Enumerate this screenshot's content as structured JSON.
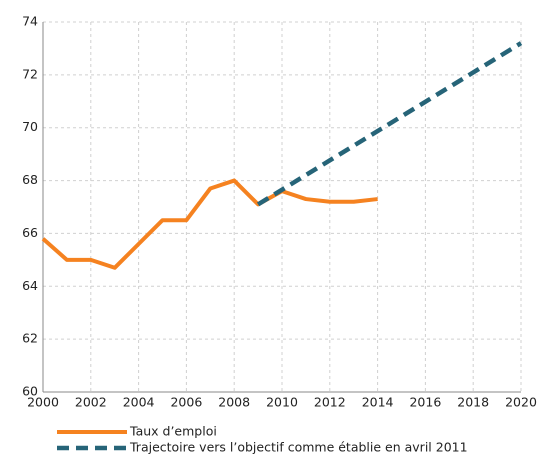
{
  "chart_data": {
    "type": "line",
    "series": [
      {
        "name": "Taux d’emploi",
        "color": "#f58220",
        "dash": false,
        "x": [
          2000,
          2001,
          2002,
          2003,
          2004,
          2005,
          2006,
          2007,
          2008,
          2009,
          2010,
          2011,
          2012,
          2013,
          2014
        ],
        "values": [
          65.8,
          65.0,
          65.0,
          64.7,
          65.6,
          66.5,
          66.5,
          67.7,
          68.0,
          67.1,
          67.6,
          67.3,
          67.2,
          67.2,
          67.3
        ]
      },
      {
        "name": "Trajectoire vers l’objectif comme établie en avril 2011",
        "color": "#266478",
        "dash": true,
        "x": [
          2009,
          2020
        ],
        "values": [
          67.1,
          73.2
        ]
      }
    ],
    "xlim": [
      2000,
      2020
    ],
    "xticks": [
      2000,
      2002,
      2004,
      2006,
      2008,
      2010,
      2012,
      2014,
      2016,
      2018,
      2020
    ],
    "ylim": [
      60,
      74
    ],
    "yticks": [
      60,
      62,
      64,
      66,
      68,
      70,
      72,
      74
    ],
    "grid": true
  }
}
